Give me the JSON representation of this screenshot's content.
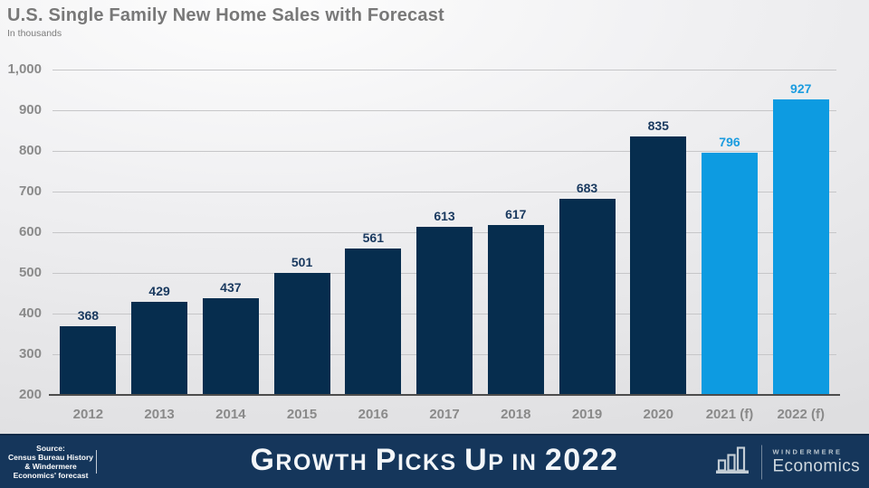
{
  "header": {
    "title": "U.S. Single Family New Home Sales with Forecast",
    "subtitle": "In thousands"
  },
  "chart_data": {
    "type": "bar",
    "title": "U.S. Single Family New Home Sales with Forecast",
    "units_label": "In thousands",
    "categories": [
      "2012",
      "2013",
      "2014",
      "2015",
      "2016",
      "2017",
      "2018",
      "2019",
      "2020",
      "2021 (f)",
      "2022 (f)"
    ],
    "values": [
      368,
      429,
      437,
      501,
      561,
      613,
      617,
      683,
      835,
      796,
      927
    ],
    "forecast_flags": [
      false,
      false,
      false,
      false,
      false,
      false,
      false,
      false,
      false,
      true,
      true
    ],
    "ylim": [
      200,
      1000
    ],
    "ytick_interval": 100,
    "ytick_labels": [
      "200",
      "300",
      "400",
      "500",
      "600",
      "700",
      "800",
      "900",
      "1,000"
    ],
    "grid": true,
    "legend": "none",
    "colors": {
      "actual_bar": "#062d4e",
      "forecast_bar": "#0d9be1",
      "actual_label": "#19395f",
      "forecast_label": "#1b9cdf",
      "banner": "#15365b"
    }
  },
  "footer": {
    "source_lines": [
      "Source:",
      "Census Bureau History",
      "& Windermere",
      "Economics' forecast"
    ],
    "headline_plain": "Growth Picks Up in 2022",
    "headline_segments": [
      {
        "text": "G",
        "size": "lg"
      },
      {
        "text": "ROWTH",
        "size": "sm"
      },
      {
        "text": " ",
        "size": "sm"
      },
      {
        "text": "P",
        "size": "lg"
      },
      {
        "text": "ICKS",
        "size": "sm"
      },
      {
        "text": " ",
        "size": "sm"
      },
      {
        "text": "U",
        "size": "lg"
      },
      {
        "text": "P",
        "size": "sm"
      },
      {
        "text": " ",
        "size": "sm"
      },
      {
        "text": "IN",
        "size": "sm"
      },
      {
        "text": " ",
        "size": "sm"
      },
      {
        "text": "2022",
        "size": "lg"
      }
    ],
    "logo": {
      "icon": "bar-chart-icon",
      "brand_top": "WINDERMERE",
      "brand_bottom": "Economics"
    }
  }
}
